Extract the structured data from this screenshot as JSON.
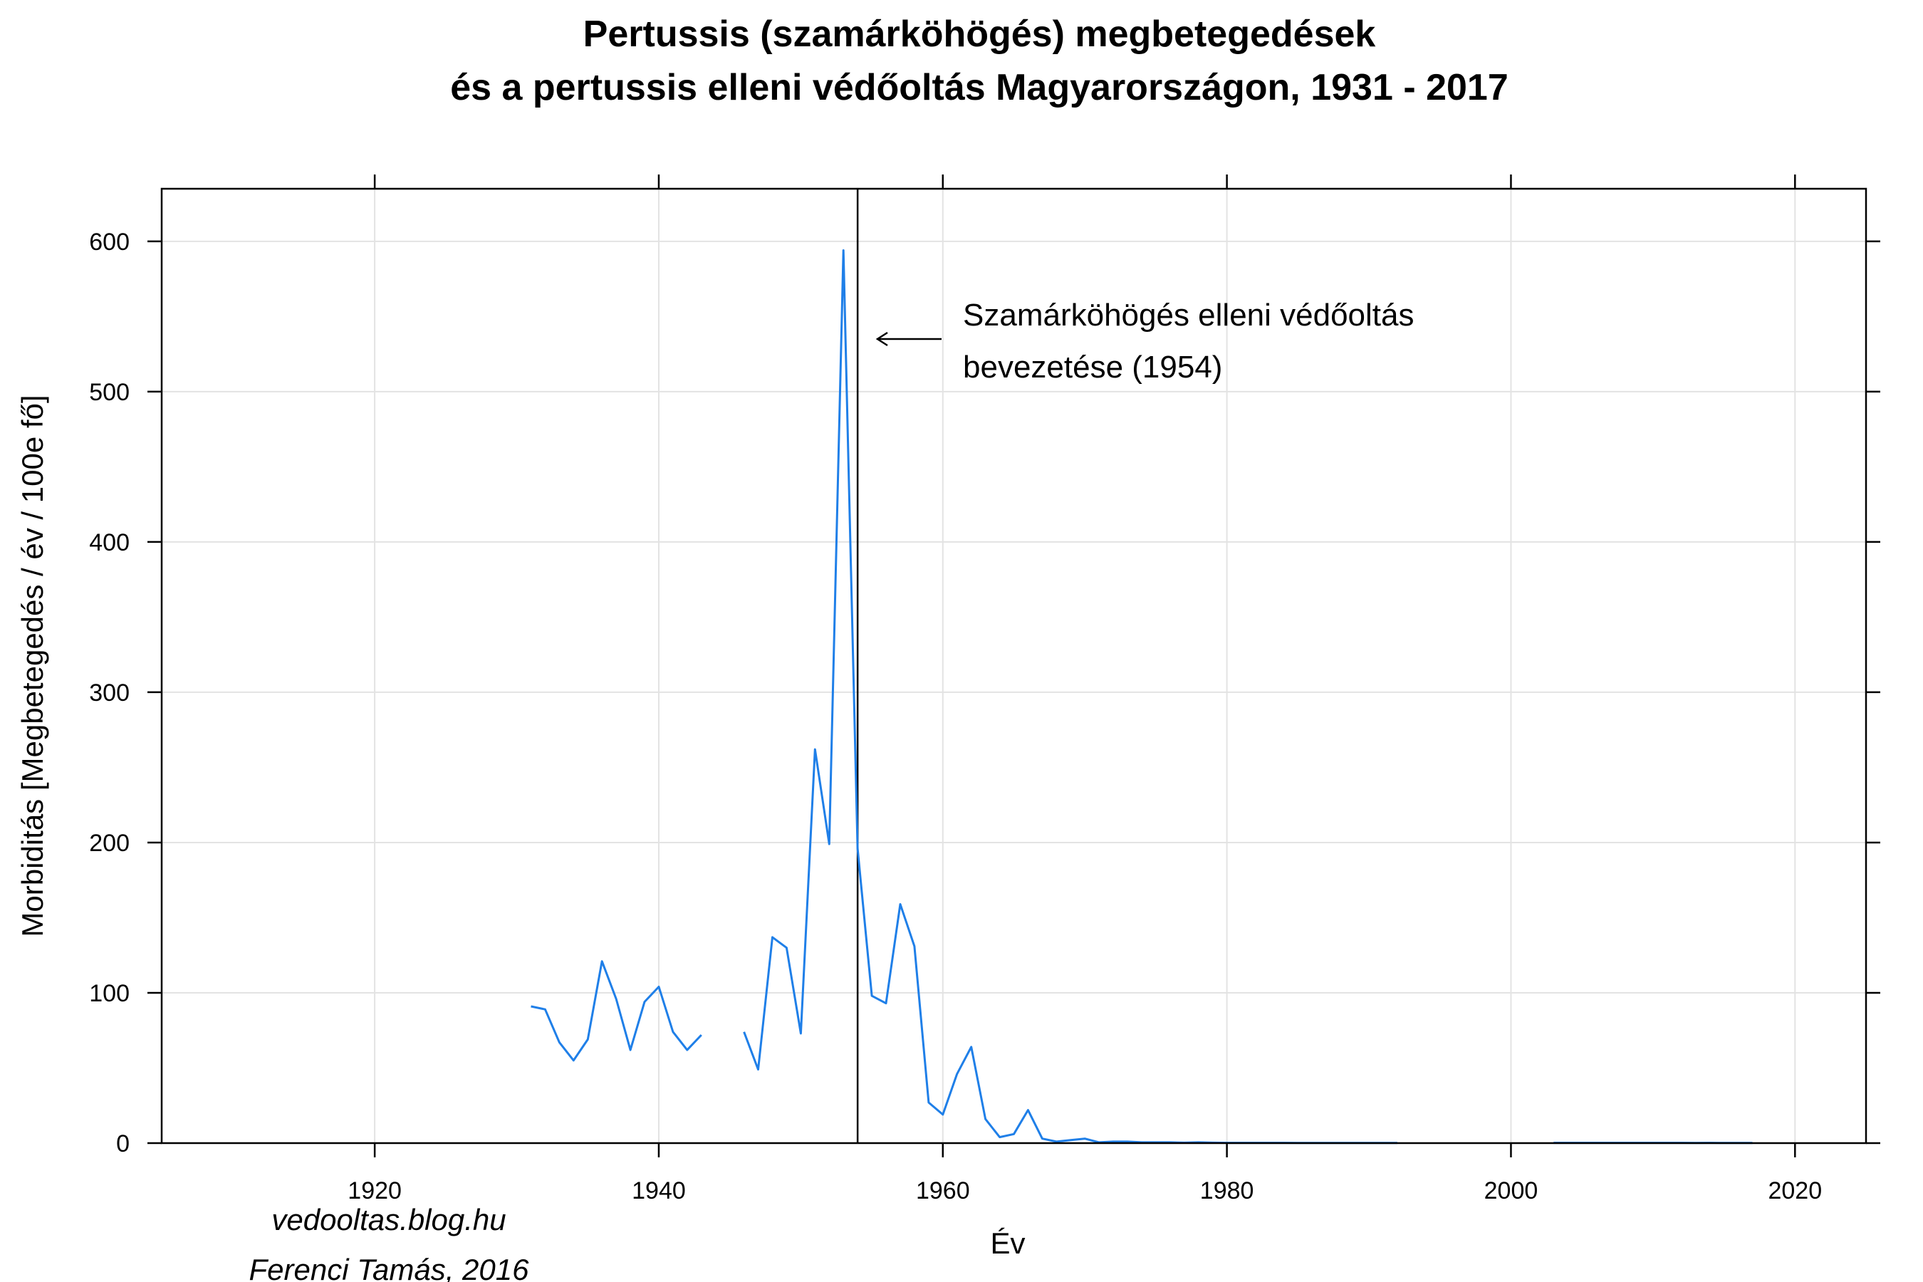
{
  "chart_data": {
    "type": "line",
    "title": "Pertussis (szamárköhögés) megbetegedések",
    "subtitle": "és a pertussis elleni védőoltás Magyarországon, 1931 - 2017",
    "xlabel": "Év",
    "ylabel": "Morbiditás [Megbetegedés / év / 100e fő]",
    "xlim": [
      1905,
      2025
    ],
    "ylim": [
      0,
      635
    ],
    "x_ticks": [
      1920,
      1940,
      1960,
      1980,
      2000,
      2020
    ],
    "y_ticks": [
      0,
      100,
      200,
      300,
      400,
      500,
      600
    ],
    "grid": true,
    "line_color": "#1f7fe8",
    "series": [
      {
        "x": [
          1931,
          1932,
          1933,
          1934,
          1935,
          1936,
          1937,
          1938,
          1939,
          1940,
          1941,
          1942,
          1943,
          1944,
          1945,
          1946,
          1947,
          1948,
          1949,
          1950,
          1951,
          1952,
          1953,
          1954,
          1955,
          1956,
          1957,
          1958,
          1959,
          1960,
          1961,
          1962,
          1963,
          1964,
          1965,
          1966,
          1967,
          1968,
          1969,
          1970,
          1971,
          1972,
          1973,
          1974,
          1975,
          1976,
          1977,
          1978,
          1979,
          1980,
          1981,
          1982,
          1983,
          1984,
          1985,
          1986,
          1987,
          1988,
          1989,
          1990,
          1991,
          1992,
          1993,
          1994,
          1995,
          1996,
          1997,
          1998,
          1999,
          2000,
          2001,
          2002,
          2003,
          2004,
          2005,
          2006,
          2007,
          2008,
          2009,
          2010,
          2011,
          2012,
          2013,
          2014,
          2015,
          2016,
          2017
        ],
        "y": [
          91,
          89,
          67,
          55,
          69,
          121,
          96,
          62,
          94,
          104,
          74,
          62,
          72,
          null,
          null,
          74,
          49,
          137,
          130,
          73,
          262,
          199,
          594,
          196,
          98,
          93,
          159,
          131,
          27,
          19,
          46,
          64,
          16,
          4,
          6,
          22,
          3,
          1,
          2,
          3,
          0.5,
          1,
          1,
          0.5,
          0.5,
          0.5,
          0.3,
          0.5,
          0.3,
          0.2,
          0.2,
          0.2,
          0.2,
          0.2,
          0.1,
          0.1,
          0.1,
          0.1,
          0.1,
          0.1,
          0.1,
          0.1,
          null,
          null,
          null,
          null,
          null,
          null,
          null,
          null,
          null,
          null,
          0.2,
          0.2,
          0.2,
          0.2,
          0.2,
          0.2,
          0.2,
          0.2,
          0.2,
          0.2,
          0.1,
          0.2,
          0.1,
          0.1,
          0.1
        ]
      }
    ],
    "vline": {
      "x": 1954,
      "color": "#000000"
    },
    "annotation": {
      "line1": "Szamárköhögés elleni védőoltás",
      "line2": "bevezetése (1954)"
    }
  },
  "credits": {
    "line1": "vedooltas.blog.hu",
    "line2": "Ferenci Tamás, 2016"
  }
}
